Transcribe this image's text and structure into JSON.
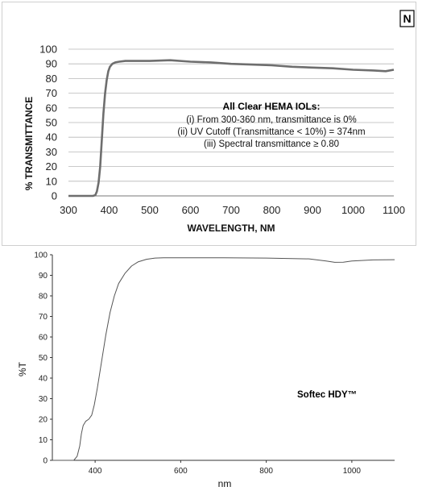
{
  "chart_data": [
    {
      "type": "line",
      "badge": "N",
      "xlabel": "WAVELENGTH, NM",
      "ylabel": "% TRANSMITTANCE",
      "xlim": [
        300,
        1100
      ],
      "ylim": [
        0,
        100
      ],
      "x_ticks": [
        "300",
        "400",
        "500",
        "600",
        "700",
        "800",
        "900",
        "1000",
        "1100"
      ],
      "y_ticks": [
        "0",
        "10",
        "20",
        "30",
        "40",
        "50",
        "60",
        "70",
        "80",
        "90",
        "100"
      ],
      "grid": true,
      "annotation": {
        "title": "All Clear HEMA IOLs:",
        "lines": [
          "(i) From 300-360 nm, transmittance is 0%",
          "(ii) UV Cutoff (Transmittance < 10%) = 374nm",
          "(iii) Spectral transmittance ≥ 0.80"
        ]
      },
      "series": [
        {
          "color": "#6e6e6e",
          "x": [
            300,
            360,
            366,
            370,
            374,
            378,
            382,
            386,
            390,
            394,
            398,
            402,
            408,
            415,
            425,
            440,
            470,
            500,
            550,
            600,
            650,
            700,
            750,
            800,
            850,
            900,
            950,
            1000,
            1050,
            1080,
            1100
          ],
          "y": [
            0,
            0,
            0.5,
            3,
            9,
            20,
            38,
            56,
            70,
            79,
            85,
            88,
            90,
            91,
            91.5,
            92,
            92,
            92,
            92.5,
            91.5,
            91,
            90,
            89.5,
            89,
            88,
            87.5,
            87,
            86,
            85.5,
            85,
            86
          ]
        }
      ]
    },
    {
      "type": "line",
      "xlabel": "nm",
      "ylabel": "%T",
      "xlim": [
        300,
        1100
      ],
      "ylim": [
        0,
        100
      ],
      "x_ticks": [
        "400",
        "600",
        "800",
        "1000"
      ],
      "y_ticks": [
        "0",
        "10",
        "20",
        "30",
        "40",
        "50",
        "60",
        "70",
        "80",
        "90",
        "100"
      ],
      "grid": false,
      "annotation": {
        "label": "Softec HDY™"
      },
      "series": [
        {
          "color": "#555555",
          "x": [
            300,
            350,
            358,
            364,
            368,
            372,
            378,
            385,
            392,
            398,
            405,
            415,
            425,
            435,
            445,
            455,
            470,
            485,
            500,
            520,
            540,
            560,
            600,
            700,
            800,
            900,
            940,
            960,
            980,
            1000,
            1050,
            1100
          ],
          "y": [
            0,
            0,
            2,
            7,
            13,
            17,
            19,
            20,
            22,
            27,
            35,
            48,
            61,
            72,
            80,
            86,
            91,
            94.5,
            96.5,
            97.8,
            98.4,
            98.5,
            98.5,
            98.5,
            98.4,
            98,
            97,
            96.3,
            96.4,
            97,
            97.5,
            97.6
          ]
        }
      ]
    }
  ]
}
